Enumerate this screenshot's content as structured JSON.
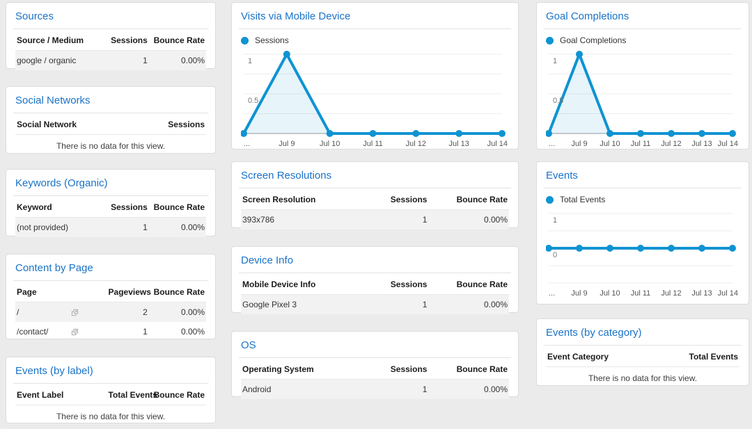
{
  "colors": {
    "title_link": "#1a73c8",
    "chart_line": "#0f93d2",
    "chart_area": "rgba(15,147,210,0.10)",
    "page_bg": "#ebebeb",
    "card_border": "#dcdcdc",
    "row_stripe": "#f2f2f2",
    "axis_line": "#9a9a9a",
    "grid_line": "#ededed"
  },
  "cards": {
    "sources": {
      "title": "Sources",
      "columns": [
        "Source / Medium",
        "Sessions",
        "Bounce Rate"
      ],
      "rows": [
        [
          "google / organic",
          "1",
          "0.00%"
        ]
      ]
    },
    "social_networks": {
      "title": "Social Networks",
      "columns": [
        "Social Network",
        "Sessions"
      ],
      "empty_message": "There is no data for this view."
    },
    "keywords": {
      "title": "Keywords (Organic)",
      "columns": [
        "Keyword",
        "Sessions",
        "Bounce Rate"
      ],
      "rows": [
        [
          "(not provided)",
          "1",
          "0.00%"
        ]
      ]
    },
    "content_by_page": {
      "title": "Content by Page",
      "columns": [
        "Page",
        "Pageviews",
        "Bounce Rate"
      ],
      "rows": [
        [
          "/",
          "2",
          "0.00%"
        ],
        [
          "/contact/",
          "1",
          "0.00%"
        ]
      ],
      "row_icon": "open-in-new"
    },
    "events_by_label": {
      "title": "Events (by label)",
      "columns": [
        "Event Label",
        "Total Events",
        "Bounce Rate"
      ],
      "empty_message": "There is no data for this view."
    },
    "screen_resolutions": {
      "title": "Screen Resolutions",
      "columns": [
        "Screen Resolution",
        "Sessions",
        "Bounce Rate"
      ],
      "rows": [
        [
          "393x786",
          "1",
          "0.00%"
        ]
      ]
    },
    "device_info": {
      "title": "Device Info",
      "columns": [
        "Mobile Device Info",
        "Sessions",
        "Bounce Rate"
      ],
      "rows": [
        [
          "Google Pixel 3",
          "1",
          "0.00%"
        ]
      ]
    },
    "os": {
      "title": "OS",
      "columns": [
        "Operating System",
        "Sessions",
        "Bounce Rate"
      ],
      "rows": [
        [
          "Android",
          "1",
          "0.00%"
        ]
      ]
    },
    "events_by_category": {
      "title": "Events (by category)",
      "columns": [
        "Event Category",
        "Total Events"
      ],
      "empty_message": "There is no data for this view."
    }
  },
  "chart_data": [
    {
      "type": "line",
      "title": "Visits via Mobile Device",
      "categories": [
        "...",
        "Jul 9",
        "Jul 10",
        "Jul 11",
        "Jul 12",
        "Jul 13",
        "Jul 14"
      ],
      "series": [
        {
          "name": "Sessions",
          "values": [
            0,
            1,
            0,
            0,
            0,
            0,
            0
          ]
        }
      ],
      "ylim": [
        0,
        1
      ],
      "yticks": [
        {
          "v": 1,
          "label": "1"
        },
        {
          "v": 0.5,
          "label": "0.5"
        }
      ],
      "grid_step": 0.25,
      "area": true,
      "grid": true,
      "legend_position": "top-left"
    },
    {
      "type": "line",
      "title": "Goal Completions",
      "categories": [
        "...",
        "Jul 9",
        "Jul 10",
        "Jul 11",
        "Jul 12",
        "Jul 13",
        "Jul 14"
      ],
      "series": [
        {
          "name": "Goal Completions",
          "values": [
            0,
            1,
            0,
            0,
            0,
            0,
            0
          ]
        }
      ],
      "ylim": [
        0,
        1
      ],
      "yticks": [
        {
          "v": 1,
          "label": "1"
        },
        {
          "v": 0.5,
          "label": "0.5"
        }
      ],
      "grid_step": 0.25,
      "area": true,
      "grid": true,
      "legend_position": "top-left"
    },
    {
      "type": "line",
      "title": "Events",
      "categories": [
        "...",
        "Jul 9",
        "Jul 10",
        "Jul 11",
        "Jul 12",
        "Jul 13",
        "Jul 14"
      ],
      "series": [
        {
          "name": "Total Events",
          "values": [
            0,
            0,
            0,
            0,
            0,
            0,
            0
          ]
        }
      ],
      "ylim": [
        -1,
        1
      ],
      "yticks": [
        {
          "v": 1,
          "label": "1"
        },
        {
          "v": 0,
          "label": "0"
        }
      ],
      "grid_step": 0.5,
      "area": false,
      "grid": true,
      "legend_position": "top-left"
    }
  ]
}
